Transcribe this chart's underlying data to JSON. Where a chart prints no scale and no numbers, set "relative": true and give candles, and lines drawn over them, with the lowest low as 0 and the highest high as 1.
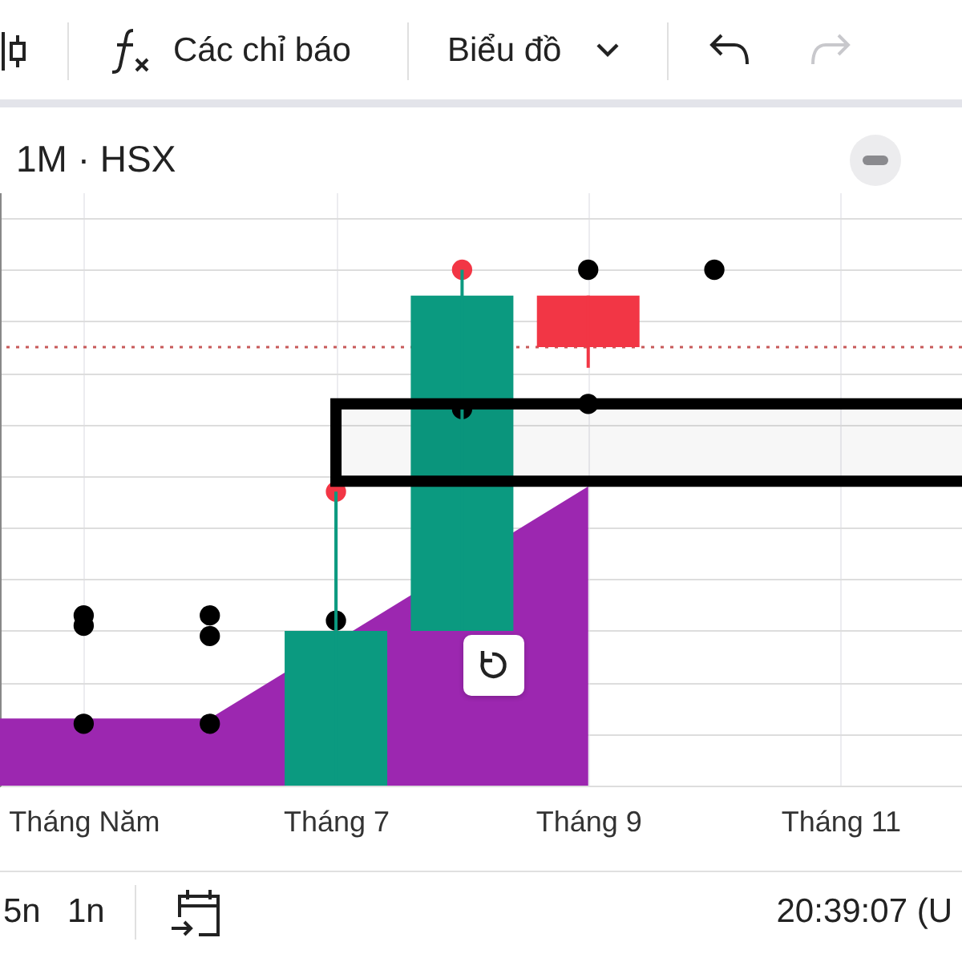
{
  "chart_data": {
    "type": "candlestick",
    "title": "1M · HSX",
    "relative": true,
    "categories": [
      null,
      "Tháng Năm",
      null,
      "Tháng 7",
      null,
      "Tháng 9",
      null,
      "Tháng 11",
      null
    ],
    "ohlc": [
      null,
      null,
      null,
      [
        0,
        0.57,
        0,
        0.3
      ],
      [
        0.3,
        1.0,
        0.3,
        0.95
      ],
      [
        0.95,
        0.95,
        0.81,
        0.85
      ],
      null,
      null,
      null
    ],
    "colors": [
      null,
      null,
      null,
      "#0b9a80",
      "#0b9a80",
      "#f23645",
      null,
      null,
      null
    ],
    "grid": "x",
    "series": [
      {
        "type": "area",
        "color": "#9c27b0",
        "values": [
          0.13,
          0.13,
          0.13,
          null,
          null,
          0.58,
          null,
          null,
          null
        ]
      },
      {
        "type": "scatter",
        "color": "#000000",
        "marker": "circle",
        "values": [
          null,
          0.33,
          0.33,
          0.32,
          0.73,
          1.0,
          1.0,
          null,
          null
        ]
      },
      {
        "type": "scatter",
        "color": "#000000",
        "marker": "circle",
        "values": [
          null,
          0.31,
          0.29,
          null,
          null,
          0.74,
          null,
          null,
          null
        ]
      },
      {
        "type": "scatter",
        "color": "#000000",
        "marker": "circle",
        "values": [
          null,
          0.12,
          0.12,
          null,
          null,
          null,
          null,
          null,
          null
        ]
      },
      {
        "type": "scatter",
        "color": "#f23645",
        "marker": "circle",
        "values": [
          null,
          null,
          null,
          0.57,
          1.0,
          null,
          null,
          null,
          null
        ]
      }
    ],
    "bands": [
      {
        "axis": "y",
        "from": 0.59,
        "to": 0.74,
        "color": "#000000"
      }
    ],
    "ref_lines": [
      {
        "axis": "y",
        "value": 0.85,
        "color": "#c85a5a",
        "line_style": "dotted"
      }
    ],
    "annotations": [
      "Các chỉ báo",
      "Biểu đồ",
      "5n",
      "1n",
      "20:39:07 (U"
    ]
  }
}
